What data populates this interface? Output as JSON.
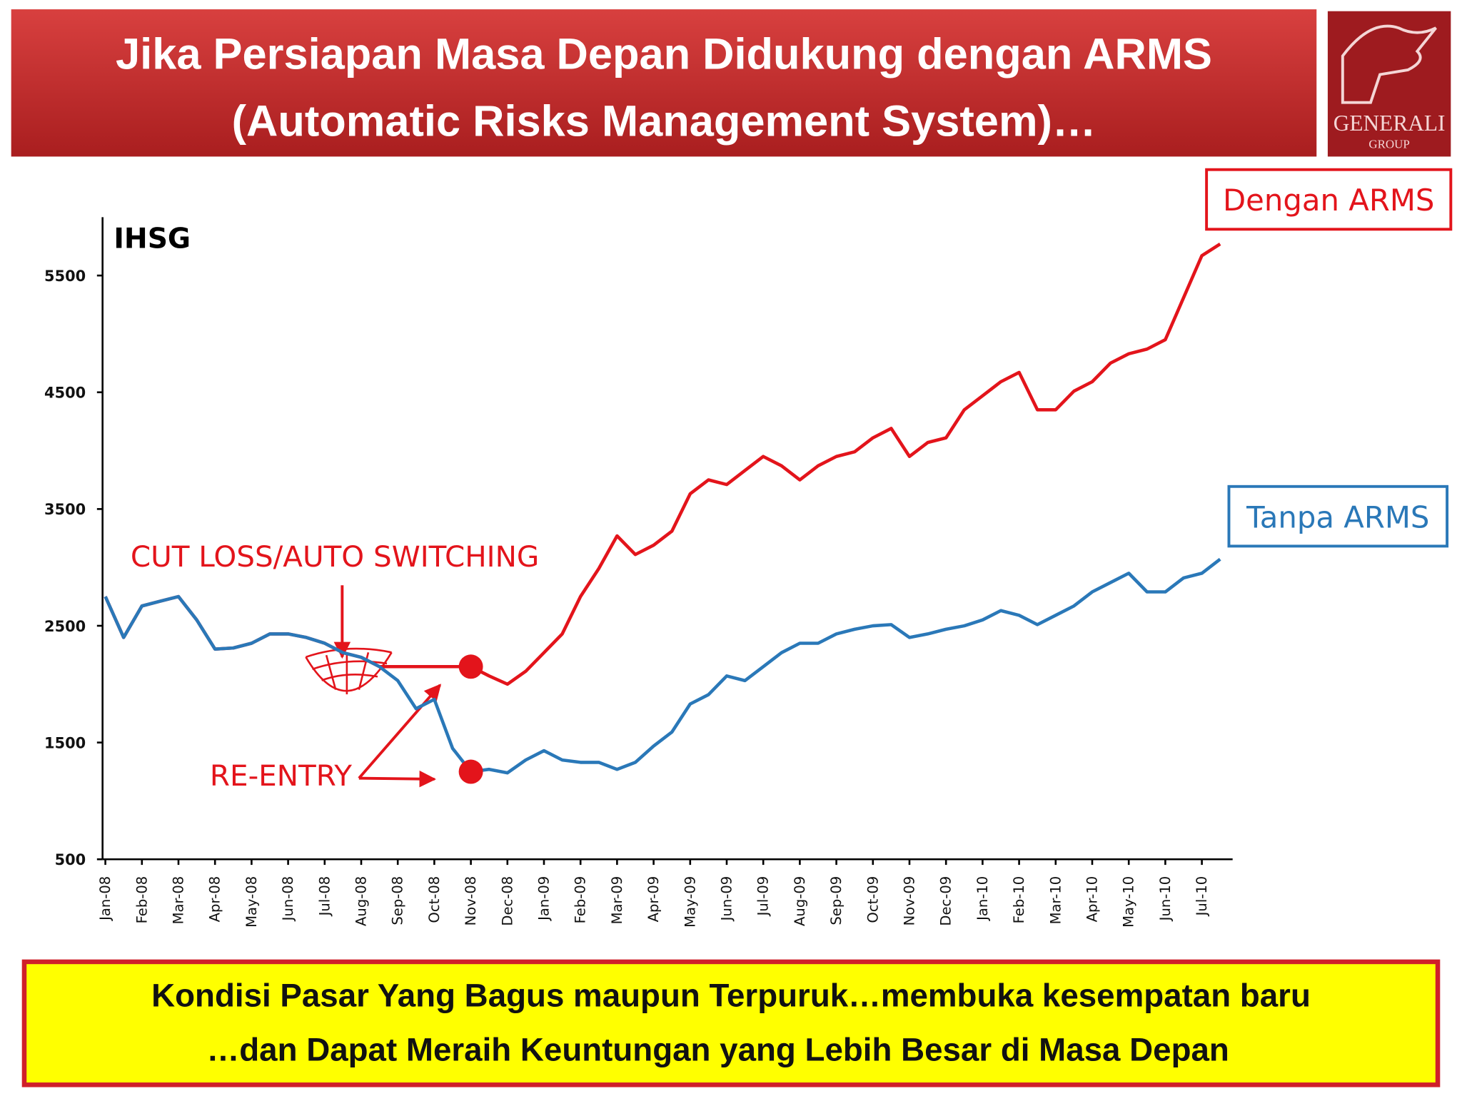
{
  "header": {
    "title_lines": [
      "Jika Persiapan Masa Depan Didukung dengan ARMS",
      "(Automatic Risks Management System)…"
    ]
  },
  "logo": {
    "name": "GENERALI",
    "sub": "GROUP"
  },
  "chart_data": {
    "type": "line",
    "title": "IHSG",
    "categories": [
      "Jan-08",
      null,
      "Feb-08",
      null,
      "Mar-08",
      null,
      "Apr-08",
      null,
      "May-08",
      null,
      "Jun-08",
      null,
      "Jul-08",
      null,
      "Aug-08",
      null,
      "Sep-08",
      null,
      "Oct-08",
      null,
      "Nov-08",
      null,
      "Dec-08",
      null,
      "Jan-09",
      null,
      "Feb-09",
      null,
      "Mar-09",
      null,
      "Apr-09",
      null,
      "May-09",
      null,
      "Jun-09",
      null,
      "Jul-09",
      null,
      "Aug-09",
      null,
      "Sep-09",
      null,
      "Oct-09",
      null,
      "Nov-09",
      null,
      "Dec-09",
      null,
      "Jan-10",
      null,
      "Feb-10",
      null,
      "Mar-10",
      null,
      "Apr-10",
      null,
      "May-10",
      null,
      "Jun-10",
      null,
      "Jul-10",
      null
    ],
    "series": [
      {
        "name": "Tanpa ARMS",
        "color": "#2a78b8",
        "values": [
          2750,
          2400,
          2670,
          2710,
          2750,
          2550,
          2300,
          2310,
          2350,
          2430,
          2430,
          2400,
          2350,
          2270,
          2230,
          2150,
          2030,
          1790,
          1870,
          1450,
          1250,
          1270,
          1240,
          1350,
          1430,
          1350,
          1330,
          1330,
          1270,
          1330,
          1470,
          1590,
          1830,
          1910,
          2070,
          2030,
          2150,
          2270,
          2350,
          2350,
          2430,
          2470,
          2500,
          2510,
          2400,
          2430,
          2470,
          2500,
          2550,
          2630,
          2590,
          2510,
          2590,
          2670,
          2790,
          2870,
          2950,
          2790,
          2790,
          2910,
          2950,
          3070
        ]
      },
      {
        "name": "Dengan ARMS",
        "color": "#e3141b",
        "values": [
          2750,
          2400,
          2670,
          2710,
          2750,
          2550,
          2300,
          2310,
          2350,
          2430,
          2430,
          2400,
          2350,
          2270,
          2230,
          2150,
          2150,
          2150,
          2150,
          2150,
          2150,
          2070,
          2000,
          2110,
          2270,
          2430,
          2750,
          2990,
          3270,
          3110,
          3190,
          3310,
          3630,
          3750,
          3710,
          3830,
          3950,
          3870,
          3750,
          3870,
          3950,
          3990,
          4110,
          4190,
          3950,
          4070,
          4110,
          4350,
          4470,
          4590,
          4670,
          4350,
          4350,
          4510,
          4590,
          4750,
          4830,
          4870,
          4950,
          5310,
          5670,
          5770
        ]
      }
    ],
    "ylim": [
      500,
      6000
    ],
    "yticks": [
      500,
      1500,
      2500,
      3500,
      4500,
      5500
    ],
    "annotations": [
      "CUT LOSS/AUTO SWITCHING",
      "RE-ENTRY"
    ]
  },
  "footer": {
    "lines": [
      "Kondisi Pasar Yang  Bagus maupun Terpuruk…membuka kesempatan baru",
      "…dan Dapat Meraih Keuntungan yang Lebih Besar di Masa Depan"
    ]
  }
}
